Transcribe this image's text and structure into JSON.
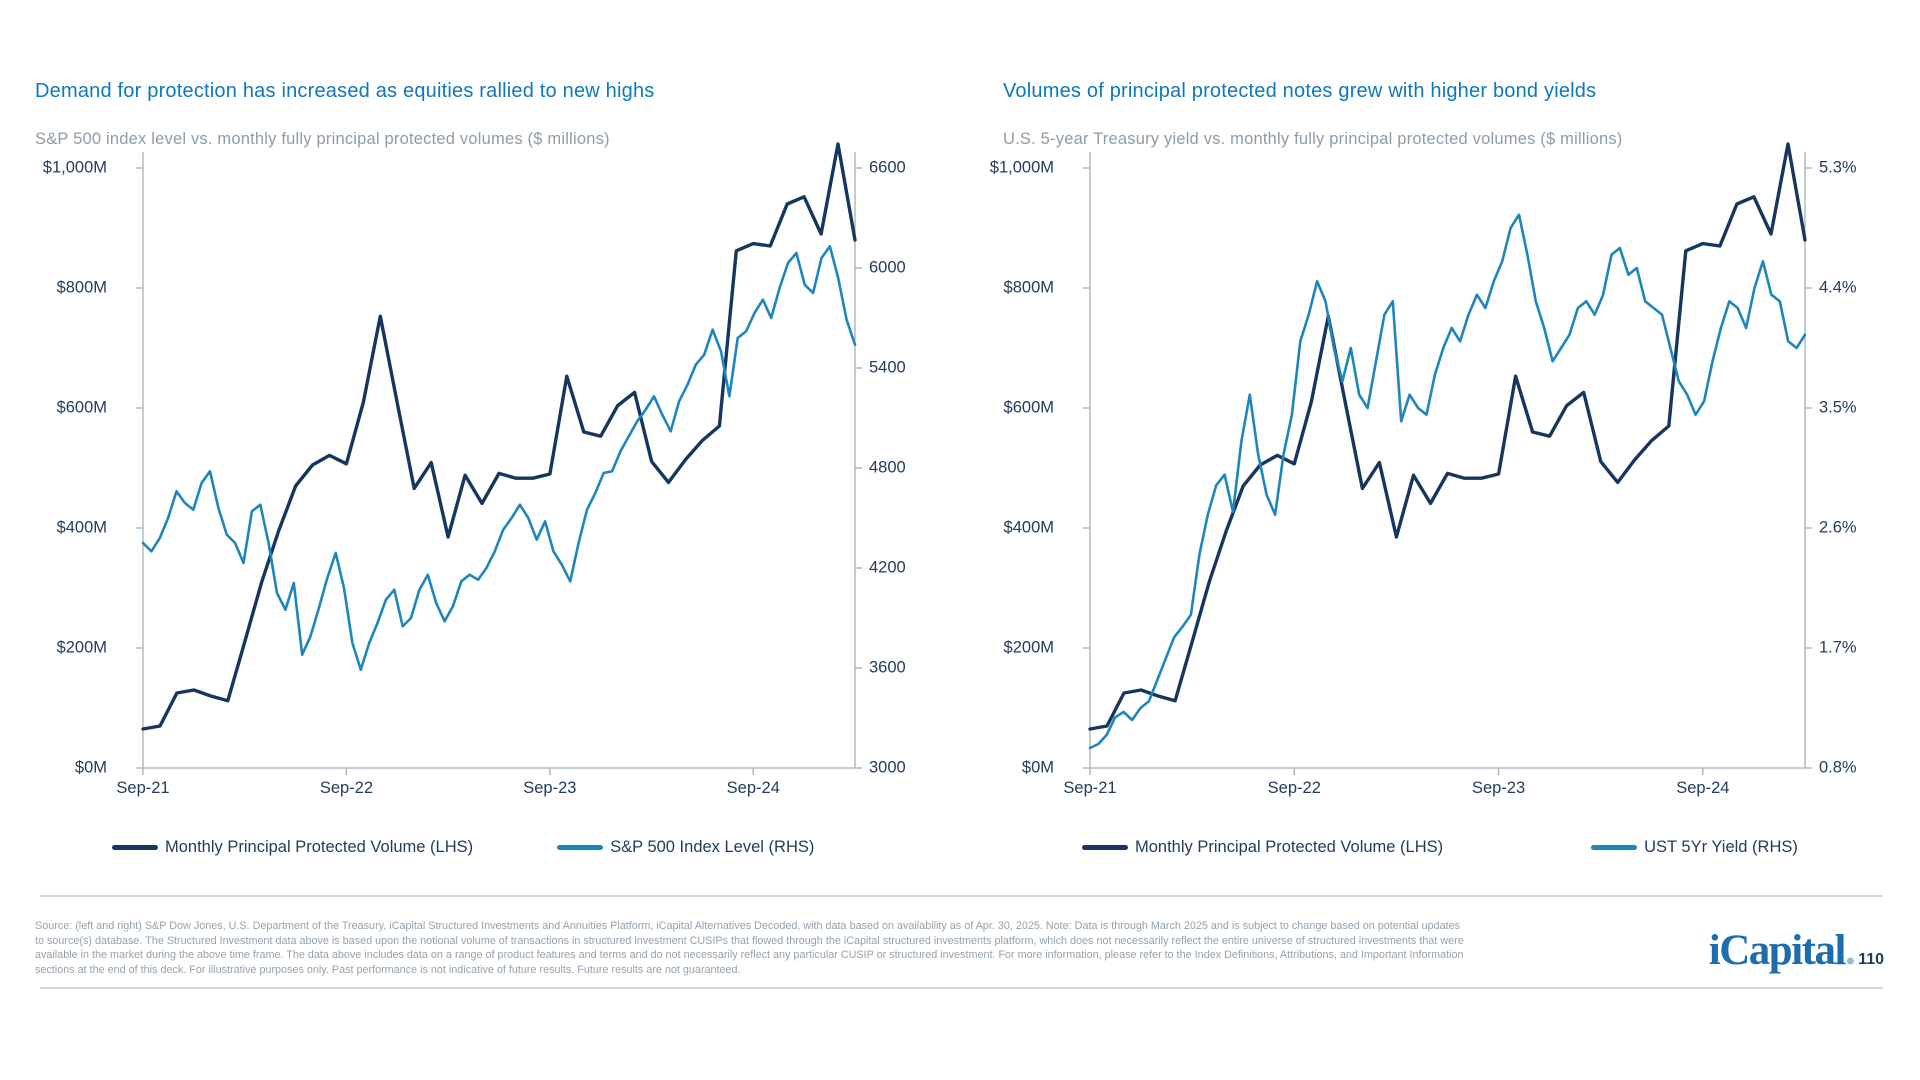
{
  "accent_colors": {
    "title_blue": "#0F77BE",
    "navy_line": "#17365F",
    "blue_line": "#1E86BB",
    "axis_gray": "#A7AFB6",
    "label_navy": "#213C5E",
    "subtitle_gray": "#8D9CA8",
    "divider": "#CBD7E1"
  },
  "chart_data": [
    {
      "type": "line",
      "title": "Demand for protection has increased as equities rallied to new highs",
      "subtitle": "S&P 500 index level vs. monthly fully principal protected volumes ($ millions)",
      "grid": "off",
      "legend_position": "bottom",
      "x_axis": {
        "unit": "month",
        "months_total": 42,
        "range": [
          "Sep-21",
          "Mar-25"
        ],
        "ticks": [
          {
            "label": "Sep-21",
            "month": 0
          },
          {
            "label": "Sep-22",
            "month": 12
          },
          {
            "label": "Sep-23",
            "month": 24
          },
          {
            "label": "Sep-24",
            "month": 36
          }
        ]
      },
      "left_axis": {
        "min": 0,
        "max": 1000,
        "ticks": [
          {
            "label": "$1,000M",
            "value": 1000
          },
          {
            "label": "$800M",
            "value": 800
          },
          {
            "label": "$600M",
            "value": 600
          },
          {
            "label": "$400M",
            "value": 400
          },
          {
            "label": "$200M",
            "value": 200
          },
          {
            "label": "$0M",
            "value": 0
          }
        ]
      },
      "right_axis": {
        "min": 3000,
        "max": 6600,
        "ticks": [
          {
            "label": "6600",
            "value": 6600
          },
          {
            "label": "6000",
            "value": 6000
          },
          {
            "label": "5400",
            "value": 5400
          },
          {
            "label": "4800",
            "value": 4800
          },
          {
            "label": "4200",
            "value": 4200
          },
          {
            "label": "3600",
            "value": 3600
          },
          {
            "label": "3000",
            "value": 3000
          }
        ]
      },
      "series": [
        {
          "name": "Monthly Principal Protected Volume (LHS)",
          "axis": "left",
          "color": "#17365F",
          "stroke_width": 3.4,
          "values": [
            65,
            70,
            125,
            130,
            120,
            112,
            210,
            310,
            395,
            470,
            505,
            521,
            507,
            610,
            753,
            608,
            466,
            509,
            385,
            488,
            441,
            491,
            483,
            483,
            490,
            653,
            560,
            553,
            604,
            626,
            511,
            476,
            514,
            546,
            570,
            862,
            874,
            870,
            940,
            952,
            890,
            1040,
            880
          ]
        },
        {
          "name": "S&P 500 Index Level (RHS)",
          "axis": "right",
          "color": "#1E86BB",
          "stroke_width": 2.6,
          "values": [
            4350,
            4300,
            4380,
            4500,
            4660,
            4590,
            4550,
            4710,
            4780,
            4560,
            4400,
            4350,
            4230,
            4540,
            4580,
            4350,
            4050,
            3950,
            4110,
            3680,
            3790,
            3960,
            4140,
            4290,
            4080,
            3750,
            3590,
            3750,
            3870,
            4010,
            4070,
            3850,
            3900,
            4070,
            4160,
            3990,
            3880,
            3970,
            4120,
            4160,
            4130,
            4200,
            4300,
            4430,
            4500,
            4580,
            4500,
            4370,
            4480,
            4300,
            4220,
            4120,
            4350,
            4550,
            4650,
            4770,
            4780,
            4900,
            4990,
            5080,
            5150,
            5230,
            5120,
            5020,
            5200,
            5300,
            5420,
            5480,
            5630,
            5500,
            5230,
            5580,
            5620,
            5730,
            5810,
            5700,
            5880,
            6030,
            6090,
            5900,
            5850,
            6060,
            6130,
            5940,
            5690,
            5540
          ]
        }
      ]
    },
    {
      "type": "line",
      "title": "Volumes of principal protected notes grew with higher bond yields",
      "subtitle": "U.S. 5-year Treasury yield vs. monthly fully principal protected volumes ($ millions)",
      "grid": "off",
      "legend_position": "bottom",
      "x_axis": {
        "unit": "month",
        "months_total": 42,
        "range": [
          "Sep-21",
          "Mar-25"
        ],
        "ticks": [
          {
            "label": "Sep-21",
            "month": 0
          },
          {
            "label": "Sep-22",
            "month": 12
          },
          {
            "label": "Sep-23",
            "month": 24
          },
          {
            "label": "Sep-24",
            "month": 36
          }
        ]
      },
      "left_axis": {
        "min": 0,
        "max": 1000,
        "ticks": [
          {
            "label": "$1,000M",
            "value": 1000
          },
          {
            "label": "$800M",
            "value": 800
          },
          {
            "label": "$600M",
            "value": 600
          },
          {
            "label": "$400M",
            "value": 400
          },
          {
            "label": "$200M",
            "value": 200
          },
          {
            "label": "$0M",
            "value": 0
          }
        ]
      },
      "right_axis": {
        "min": 0.8,
        "max": 5.3,
        "ticks": [
          {
            "label": "5.3%",
            "value": 5.3
          },
          {
            "label": "4.4%",
            "value": 4.4
          },
          {
            "label": "3.5%",
            "value": 3.5
          },
          {
            "label": "2.6%",
            "value": 2.6
          },
          {
            "label": "1.7%",
            "value": 1.7
          },
          {
            "label": "0.8%",
            "value": 0.8
          }
        ]
      },
      "series": [
        {
          "name": "Monthly Principal Protected Volume (LHS)",
          "axis": "left",
          "color": "#17365F",
          "stroke_width": 3.4,
          "values": [
            65,
            70,
            125,
            130,
            120,
            112,
            210,
            310,
            395,
            470,
            505,
            521,
            507,
            610,
            753,
            608,
            466,
            509,
            385,
            488,
            441,
            491,
            483,
            483,
            490,
            653,
            560,
            553,
            604,
            626,
            511,
            476,
            514,
            546,
            570,
            862,
            874,
            870,
            940,
            952,
            890,
            1040,
            880
          ]
        },
        {
          "name": "UST 5Yr Yield (RHS)",
          "axis": "right",
          "color": "#1E86BB",
          "stroke_width": 2.6,
          "values": [
            0.95,
            0.98,
            1.05,
            1.18,
            1.22,
            1.16,
            1.25,
            1.3,
            1.46,
            1.62,
            1.78,
            1.86,
            1.95,
            2.4,
            2.7,
            2.92,
            3.0,
            2.72,
            3.25,
            3.6,
            3.15,
            2.85,
            2.7,
            3.15,
            3.45,
            4.0,
            4.2,
            4.45,
            4.3,
            3.95,
            3.7,
            3.95,
            3.6,
            3.5,
            3.85,
            4.2,
            4.3,
            3.4,
            3.6,
            3.5,
            3.45,
            3.75,
            3.95,
            4.1,
            4.0,
            4.2,
            4.35,
            4.25,
            4.45,
            4.6,
            4.85,
            4.95,
            4.65,
            4.3,
            4.1,
            3.85,
            3.95,
            4.05,
            4.25,
            4.3,
            4.2,
            4.35,
            4.65,
            4.7,
            4.5,
            4.55,
            4.3,
            4.25,
            4.2,
            3.95,
            3.7,
            3.6,
            3.45,
            3.55,
            3.85,
            4.1,
            4.3,
            4.25,
            4.1,
            4.4,
            4.6,
            4.35,
            4.3,
            4.0,
            3.95,
            4.05
          ]
        }
      ]
    }
  ],
  "footer": {
    "lines": [
      "Source: (left and right) S&P Dow Jones, U.S. Department of the Treasury, iCapital Structured Investments and Annuities Platform, iCapital Alternatives Decoded, with data based on availability as of Apr. 30, 2025. Note: Data is through March 2025 and is subject to change based on potential updates",
      "to source(s) database. The Structured Investment data above is based upon the notional volume of transactions in structured investment CUSIPs that flowed through the iCapital structured investments platform, which does not necessarily reflect the entire universe of structured investments that were",
      "available in the market during the above time frame. The data above includes data on a range of product features and terms and do not necessarily reflect any particular CUSIP or structured investment. For more information, please refer to the Index Definitions, Attributions, and Important Information",
      "sections at the end of this deck. For illustrative purposes only. Past performance is not indicative of future results. Future results are not guaranteed."
    ]
  },
  "logo": {
    "text": "iCapital",
    "dot": ".",
    "page_number": "110"
  }
}
